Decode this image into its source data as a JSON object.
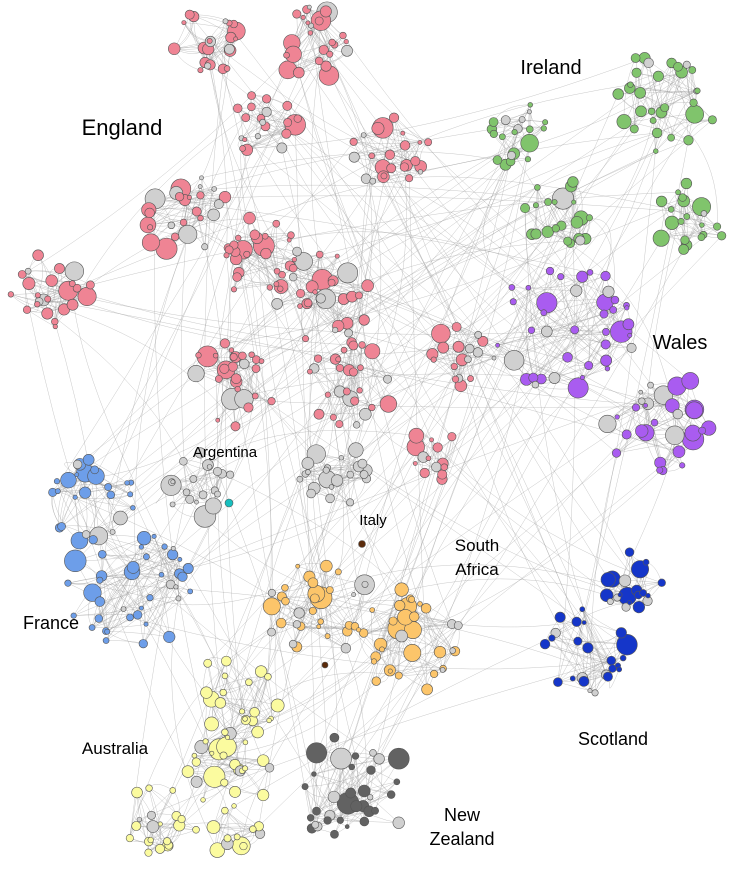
{
  "labels": [
    {
      "lines": [
        "England"
      ]
    },
    {
      "lines": [
        "Ireland"
      ]
    },
    {
      "lines": [
        "Wales"
      ]
    },
    {
      "lines": [
        "Argentina"
      ]
    },
    {
      "lines": [
        "Italy"
      ]
    },
    {
      "lines": [
        "South",
        "Africa"
      ]
    },
    {
      "lines": [
        "France"
      ]
    },
    {
      "lines": [
        "Australia"
      ]
    },
    {
      "lines": [
        "Scotland"
      ]
    },
    {
      "lines": [
        "New",
        "Zealand"
      ]
    }
  ]
}
